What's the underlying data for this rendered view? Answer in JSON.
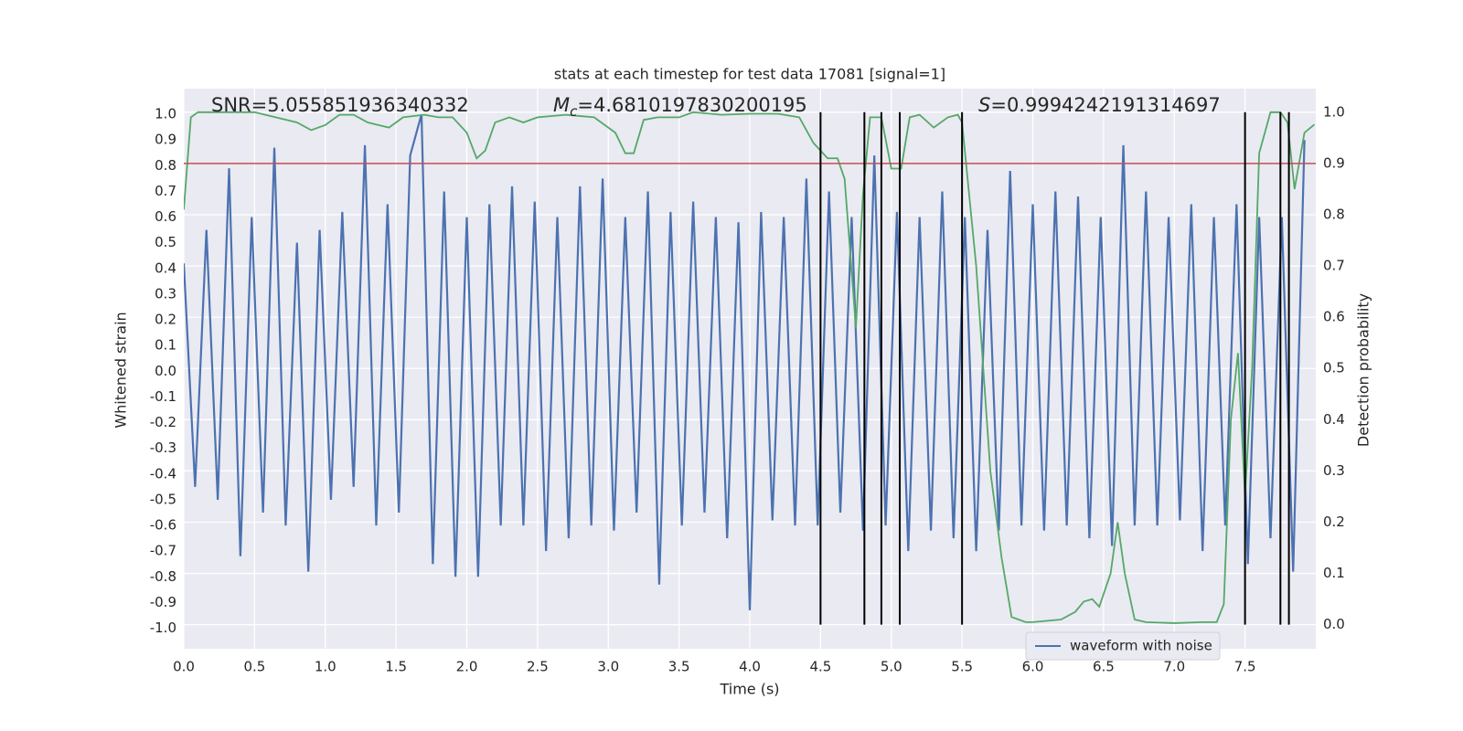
{
  "chart_data": {
    "type": "line",
    "title": "stats at each timestep for test data 17081 [signal=1]",
    "xlabel": "Time (s)",
    "ylabel": "Whitened strain",
    "y2label": "Detection probability",
    "annotations": [
      {
        "text": "SNR=5.055851936340332"
      },
      {
        "symbol": "M",
        "subscript": "c",
        "text": "=4.6810197830200195"
      },
      {
        "symbol": "S",
        "text": "=0.9994242191314697"
      }
    ],
    "xlim": [
      0,
      8.0
    ],
    "xticks": [
      {
        "value": 0,
        "label": "0.0"
      },
      0.5,
      {
        "value": 1,
        "label": "1.0"
      },
      1.5,
      {
        "value": 2,
        "label": "2.0"
      },
      2.5,
      {
        "value": 3,
        "label": "3.0"
      },
      3.5,
      {
        "value": 4,
        "label": "4.0"
      },
      4.5,
      {
        "value": 5,
        "label": "5.0"
      },
      5.5,
      {
        "value": 6,
        "label": "6.0"
      },
      6.5,
      {
        "value": 7,
        "label": "7.0"
      },
      7.5
    ],
    "ylim": [
      -1.08,
      1.1
    ],
    "yticks": [
      {
        "value": -1,
        "label": "-1.0"
      },
      -0.9,
      -0.8,
      -0.7,
      -0.6,
      -0.5,
      -0.4,
      -0.3,
      -0.2,
      -0.1,
      {
        "value": 0,
        "label": "0.0"
      },
      0.1,
      0.2,
      0.3,
      0.4,
      0.5,
      0.6,
      0.7,
      0.8,
      0.9,
      {
        "value": 1,
        "label": "1.0"
      }
    ],
    "y2lim": [
      -0.047,
      1.046
    ],
    "y2ticks": [
      {
        "value": 0,
        "label": "0.0"
      },
      0.1,
      0.2,
      0.3,
      0.4,
      0.5,
      0.6,
      0.7,
      0.8,
      0.9,
      {
        "value": 1,
        "label": "1.0"
      }
    ],
    "grid": true,
    "legend": "lower right",
    "series": [
      {
        "name": "waveform with noise",
        "color": "#4c72b0",
        "axis": "y",
        "x": [
          0,
          0.08,
          0.16,
          0.24,
          0.32,
          0.4,
          0.48,
          0.56,
          0.64,
          0.72,
          0.8,
          0.88,
          0.96,
          1.04,
          1.12,
          1.2,
          1.28,
          1.36,
          1.44,
          1.52,
          1.6,
          1.68,
          1.76,
          1.84,
          1.92,
          2,
          2.08,
          2.16,
          2.24,
          2.32,
          2.4,
          2.48,
          2.56,
          2.64,
          2.72,
          2.8,
          2.88,
          2.96,
          3.04,
          3.12,
          3.2,
          3.28,
          3.36,
          3.44,
          3.52,
          3.6,
          3.68,
          3.76,
          3.84,
          3.92,
          4,
          4.08,
          4.16,
          4.24,
          4.32,
          4.4,
          4.48,
          4.56,
          4.64,
          4.72,
          4.8,
          4.88,
          4.96,
          5.04,
          5.12,
          5.2,
          5.28,
          5.36,
          5.44,
          5.52,
          5.6,
          5.68,
          5.76,
          5.84,
          5.92,
          6,
          6.08,
          6.16,
          6.24,
          6.32,
          6.4,
          6.48,
          6.56,
          6.64,
          6.72,
          6.8,
          6.88,
          6.96,
          7.04,
          7.12,
          7.2,
          7.28,
          7.36,
          7.44,
          7.52,
          7.6,
          7.68,
          7.76,
          7.84,
          7.92
        ],
        "values": [
          0.42,
          -0.45,
          0.55,
          -0.5,
          0.79,
          -0.72,
          0.6,
          -0.55,
          0.87,
          -0.6,
          0.5,
          -0.78,
          0.55,
          -0.5,
          0.62,
          -0.45,
          0.88,
          -0.6,
          0.65,
          -0.55,
          0.84,
          1.0,
          -0.75,
          0.7,
          -0.8,
          0.6,
          -0.8,
          0.65,
          -0.6,
          0.72,
          -0.6,
          0.66,
          -0.7,
          0.6,
          -0.65,
          0.72,
          -0.6,
          0.75,
          -0.62,
          0.6,
          -0.55,
          0.7,
          -0.83,
          0.62,
          -0.6,
          0.66,
          -0.55,
          0.6,
          -0.65,
          0.58,
          -0.93,
          0.62,
          -0.58,
          0.6,
          -0.6,
          0.75,
          -0.6,
          0.7,
          -0.55,
          0.6,
          -0.62,
          0.84,
          -0.6,
          0.62,
          -0.7,
          0.6,
          -0.62,
          0.7,
          -0.65,
          0.6,
          -0.7,
          0.55,
          -0.62,
          0.78,
          -0.6,
          0.65,
          -0.62,
          0.7,
          -0.6,
          0.68,
          -0.65,
          0.6,
          -0.68,
          0.88,
          -0.6,
          0.7,
          -0.6,
          0.6,
          -0.58,
          0.65,
          -0.7,
          0.6,
          -0.6,
          0.65,
          -0.75,
          0.6,
          -0.65,
          0.6,
          -0.78,
          0.9
        ]
      },
      {
        "color": "#55a868",
        "axis": "y2",
        "x": [
          0,
          0.05,
          0.1,
          0.5,
          0.8,
          0.9,
          1.0,
          1.1,
          1.2,
          1.3,
          1.45,
          1.55,
          1.7,
          1.8,
          1.9,
          2.0,
          2.07,
          2.13,
          2.2,
          2.3,
          2.4,
          2.5,
          2.7,
          2.9,
          3.05,
          3.12,
          3.18,
          3.25,
          3.35,
          3.5,
          3.6,
          3.8,
          4.0,
          4.2,
          4.35,
          4.45,
          4.55,
          4.62,
          4.67,
          4.75,
          4.8,
          4.85,
          4.93,
          5.0,
          5.07,
          5.13,
          5.2,
          5.3,
          5.4,
          5.47,
          5.5,
          5.6,
          5.7,
          5.78,
          5.85,
          5.95,
          6.0,
          6.2,
          6.3,
          6.36,
          6.42,
          6.47,
          6.55,
          6.6,
          6.65,
          6.72,
          6.8,
          7.0,
          7.2,
          7.3,
          7.35,
          7.4,
          7.45,
          7.5,
          7.55,
          7.6,
          7.68,
          7.75,
          7.8,
          7.85,
          7.92,
          7.99
        ],
        "values": [
          0.81,
          0.99,
          1.0,
          1.0,
          0.98,
          0.965,
          0.975,
          0.995,
          0.995,
          0.98,
          0.97,
          0.99,
          0.995,
          0.99,
          0.99,
          0.96,
          0.91,
          0.925,
          0.98,
          0.99,
          0.98,
          0.99,
          0.995,
          0.99,
          0.96,
          0.92,
          0.92,
          0.985,
          0.99,
          0.99,
          1.0,
          0.995,
          0.997,
          0.997,
          0.99,
          0.94,
          0.91,
          0.91,
          0.87,
          0.58,
          0.84,
          0.99,
          0.99,
          0.89,
          0.89,
          0.99,
          0.995,
          0.97,
          0.99,
          0.995,
          0.98,
          0.7,
          0.3,
          0.13,
          0.015,
          0.005,
          0.005,
          0.01,
          0.025,
          0.045,
          0.05,
          0.035,
          0.1,
          0.2,
          0.1,
          0.01,
          0.005,
          0.003,
          0.005,
          0.005,
          0.04,
          0.4,
          0.53,
          0.25,
          0.5,
          0.92,
          1.0,
          1.0,
          0.98,
          0.85,
          0.96,
          0.976
        ]
      }
    ],
    "threshold": 0.9,
    "threshold_color": "#c44e52",
    "vlines": [
      4.5,
      4.81,
      4.93,
      5.06,
      5.5,
      7.5,
      7.75,
      7.81
    ],
    "vline_color": "#000000"
  }
}
